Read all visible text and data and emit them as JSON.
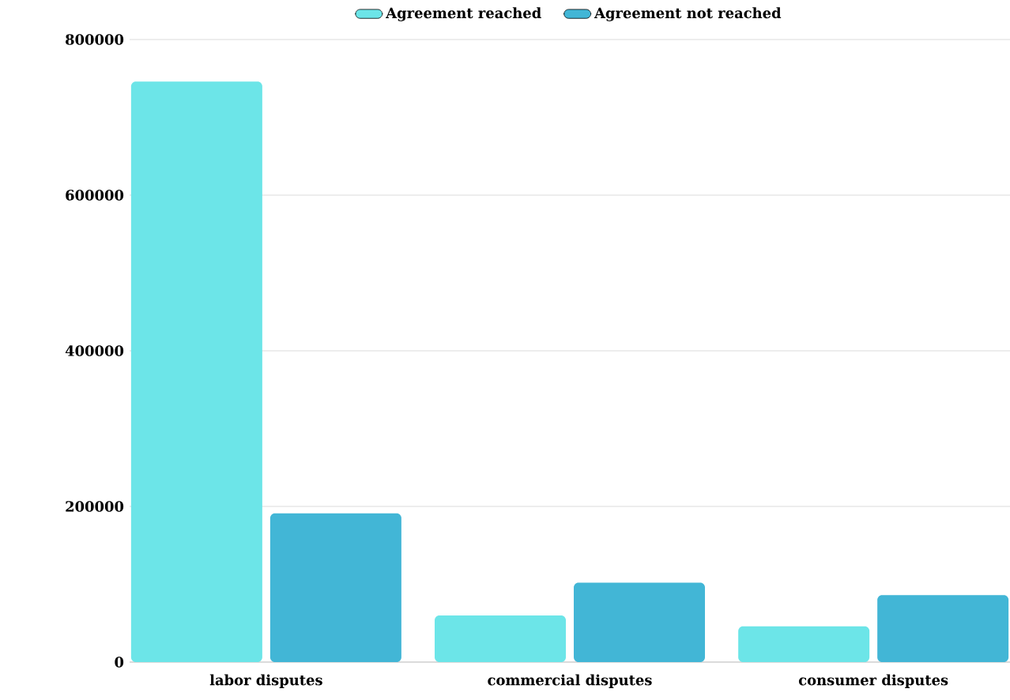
{
  "chart_data": {
    "type": "bar",
    "categories": [
      "labor disputes",
      "commercial disputes",
      "consumer disputes"
    ],
    "series": [
      {
        "name": "Agreement reached",
        "color": "#6ce5e8",
        "values": [
          746000,
          60000,
          46000
        ]
      },
      {
        "name": "Agreement not reached",
        "color": "#42b6d6",
        "values": [
          191000,
          102000,
          86000
        ]
      }
    ],
    "ylim": [
      0,
      800000
    ],
    "yticks": [
      0,
      200000,
      400000,
      600000,
      800000
    ],
    "grid": "y",
    "legend": "top"
  }
}
